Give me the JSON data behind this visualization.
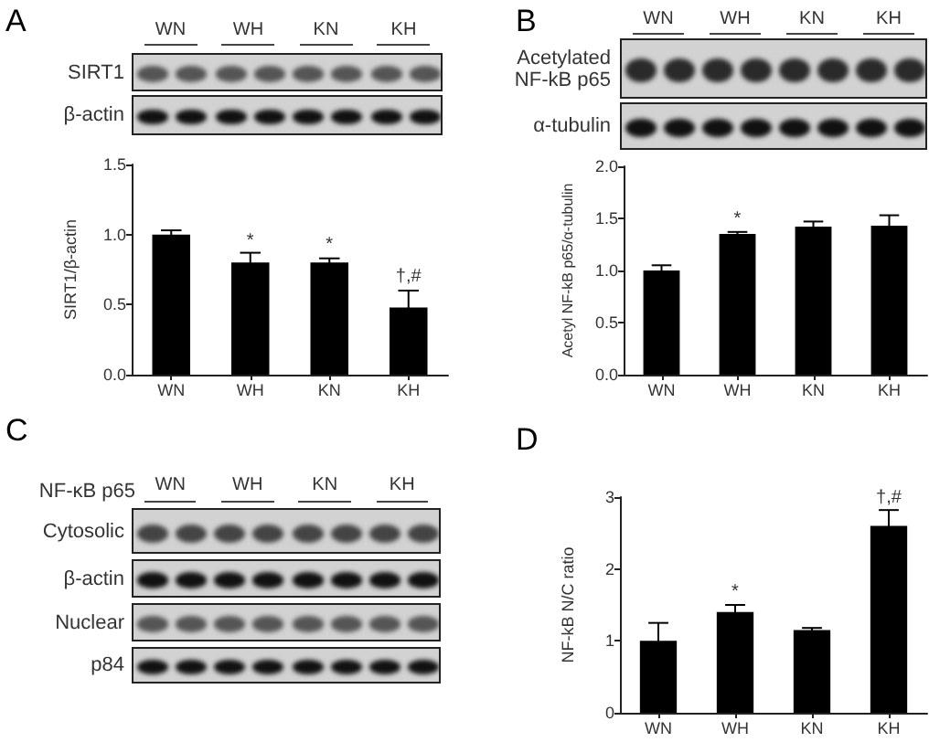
{
  "chart_data": [
    {
      "type": "other",
      "title": "A",
      "categories": [
        "WN",
        "WH",
        "KN",
        "KH"
      ],
      "annotations": [
        "SIRT1",
        "β-actin"
      ]
    },
    {
      "type": "bar",
      "categories": [
        "WN",
        "WH",
        "KN",
        "KH"
      ],
      "values": [
        1.0,
        0.8,
        0.8,
        0.48
      ],
      "errors": [
        0.03,
        0.07,
        0.03,
        0.12
      ],
      "color": "#000000",
      "ylabel": "SIRT1/β-actin",
      "ylim": [
        0,
        1.5
      ],
      "yticks": [
        {
          "value": 0,
          "label": "0.0"
        },
        {
          "value": 0.5,
          "label": "0.5"
        },
        {
          "value": 1,
          "label": "1.0"
        },
        {
          "value": 1.5,
          "label": "1.5"
        }
      ],
      "annotations": [
        {
          "text": "*",
          "x": "WH",
          "y": 0.89
        },
        {
          "text": "*",
          "x": "KN",
          "y": 0.86
        },
        {
          "text": "†,#",
          "x": "KH",
          "y": 0.63
        }
      ]
    },
    {
      "type": "other",
      "title": "B",
      "categories": [
        "WN",
        "WH",
        "KN",
        "KH"
      ],
      "annotations": [
        "Acetylated NF-kB p65",
        "α-tubulin"
      ]
    },
    {
      "type": "bar",
      "categories": [
        "WN",
        "WH",
        "KN",
        "KH"
      ],
      "values": [
        1.0,
        1.35,
        1.42,
        1.43
      ],
      "errors": [
        0.05,
        0.02,
        0.05,
        0.1
      ],
      "color": "#000000",
      "ylabel": "Acetyl NF-kB p65/α-tubulin",
      "ylim": [
        0,
        2
      ],
      "yticks": [
        {
          "value": 0,
          "label": "0.0"
        },
        {
          "value": 0.5,
          "label": "0.5"
        },
        {
          "value": 1,
          "label": "1.0"
        },
        {
          "value": 1.5,
          "label": "1.5"
        },
        {
          "value": 2,
          "label": "2.0"
        }
      ],
      "annotations": [
        {
          "text": "*",
          "x": "WH",
          "y": 1.4
        }
      ]
    },
    {
      "type": "other",
      "title": "C",
      "subtitle": "NF-κB p65",
      "categories": [
        "WN",
        "WH",
        "KN",
        "KH"
      ],
      "annotations": [
        "Cytosolic",
        "β-actin",
        "Nuclear",
        "p84"
      ]
    },
    {
      "type": "bar",
      "title": "D",
      "categories": [
        "WN",
        "WH",
        "KN",
        "KH"
      ],
      "values": [
        1.0,
        1.4,
        1.15,
        2.6
      ],
      "errors": [
        0.25,
        0.1,
        0.03,
        0.22
      ],
      "color": "#000000",
      "ylabel": "NF-kB N/C ratio",
      "ylim": [
        0,
        3
      ],
      "yticks": [
        0,
        1,
        2,
        3
      ],
      "annotations": [
        {
          "text": "*",
          "x": "WH",
          "y": 1.55
        },
        {
          "text": "†,#",
          "x": "KH",
          "y": 2.86
        }
      ]
    }
  ]
}
